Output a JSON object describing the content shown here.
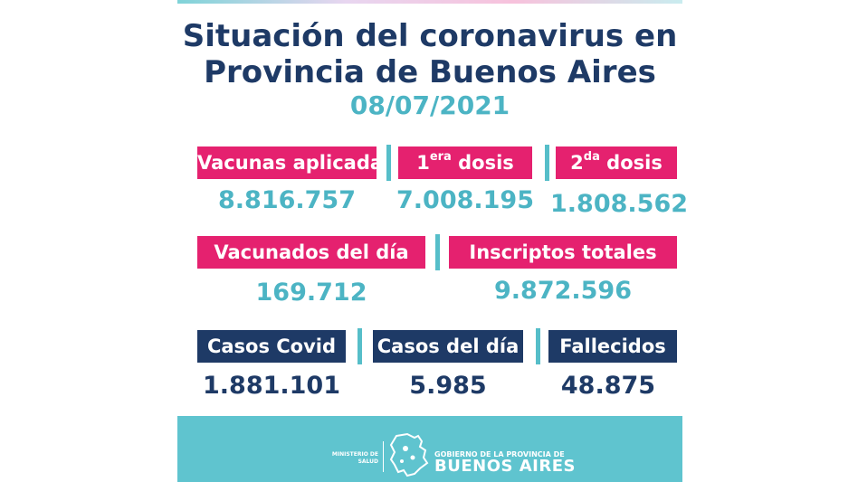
{
  "header": {
    "title_line1": "Situación del coronavirus en",
    "title_line2": "Provincia de Buenos Aires",
    "date": "08/07/2021"
  },
  "vaccines": {
    "applied": {
      "label": "Vacunas aplicadas",
      "value": "8.816.757"
    },
    "first_dose": {
      "label_prefix": "1",
      "label_sup": "era",
      "label_suffix": " dosis",
      "value": "7.008.195"
    },
    "second_dose": {
      "label_prefix": "2",
      "label_sup": "da",
      "label_suffix": " dosis",
      "value": "1.808.562"
    }
  },
  "daily": {
    "vaccinated_today": {
      "label": "Vacunados del día",
      "value": "169.712"
    },
    "registered_total": {
      "label": "Inscriptos totales",
      "value": "9.872.596"
    }
  },
  "cases": {
    "covid_cases": {
      "label": "Casos Covid",
      "value": "1.881.101"
    },
    "cases_today": {
      "label": "Casos del día",
      "value": "5.985"
    },
    "deaths": {
      "label": "Fallecidos",
      "value": "48.875"
    }
  },
  "footer": {
    "ministry_line1": "MINISTERIO DE",
    "ministry_line2": "SALUD",
    "gov_line": "GOBIERNO DE LA PROVINCIA DE",
    "province": "BUENOS AIRES"
  },
  "colors": {
    "navy": "#1e3a66",
    "pink": "#e5216f",
    "teal": "#4cb4c4",
    "footer": "#5fc4cf"
  }
}
